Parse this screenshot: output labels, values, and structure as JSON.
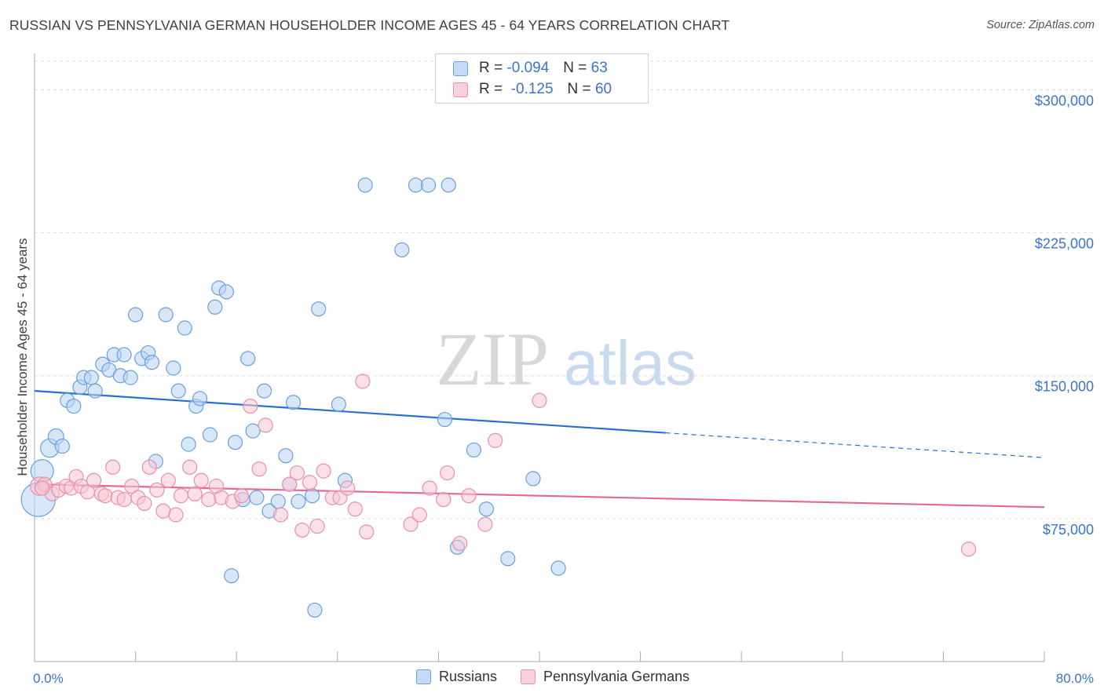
{
  "title": "RUSSIAN VS PENNSYLVANIA GERMAN HOUSEHOLDER INCOME AGES 45 - 64 YEARS CORRELATION CHART",
  "source": "Source: ZipAtlas.com",
  "watermark": {
    "zip": "ZIP",
    "atlas": "atlas"
  },
  "legend": {
    "rows": [
      {
        "r_label": "R =",
        "r_value": "-0.094",
        "n_label": "N =",
        "n_value": "63",
        "color": "#a8c8f0",
        "border": "#6a9fe0"
      },
      {
        "r_label": "R =",
        "r_value": "-0.125",
        "n_label": "N =",
        "n_value": "60",
        "color": "#f8c0d0",
        "border": "#e890ac"
      }
    ]
  },
  "bottom_legend": [
    {
      "label": "Russians",
      "color": "#c4daf6",
      "border": "#6a9fe0"
    },
    {
      "label": "Pennsylvania Germans",
      "color": "#f9d0dc",
      "border": "#e890ac"
    }
  ],
  "chart_data": {
    "type": "scatter",
    "title": "RUSSIAN VS PENNSYLVANIA GERMAN HOUSEHOLDER INCOME AGES 45 - 64 YEARS CORRELATION CHART",
    "xlabel": "",
    "ylabel": "Householder Income Ages 45 - 64 years",
    "xlim": [
      0,
      80
    ],
    "ylim": [
      0,
      315000
    ],
    "x_tick_labels": [
      "0.0%",
      "80.0%"
    ],
    "y_ticks": [
      75000,
      150000,
      225000,
      300000
    ],
    "y_tick_labels": [
      "$75,000",
      "$150,000",
      "$225,000",
      "$300,000"
    ],
    "series": [
      {
        "name": "Russians",
        "color": "#6a9fe0",
        "fill": "#b8d3f3",
        "trend": {
          "x_start": 0,
          "y_start": 142000,
          "x_solid_end": 50,
          "y_solid_end": 120000,
          "x_end": 80,
          "y_end": 107000,
          "color": "#2a6fcf"
        },
        "points": [
          {
            "x": 0.3,
            "y": 85000,
            "s": 2.4
          },
          {
            "x": 0.6,
            "y": 100000,
            "s": 1.6
          },
          {
            "x": 1.2,
            "y": 112000,
            "s": 1.3
          },
          {
            "x": 1.7,
            "y": 118000,
            "s": 1.1
          },
          {
            "x": 2.2,
            "y": 113000,
            "s": 1
          },
          {
            "x": 2.6,
            "y": 137000,
            "s": 1
          },
          {
            "x": 3.1,
            "y": 134000,
            "s": 1
          },
          {
            "x": 3.6,
            "y": 144000,
            "s": 1
          },
          {
            "x": 3.9,
            "y": 149000,
            "s": 1
          },
          {
            "x": 4.5,
            "y": 149000,
            "s": 1
          },
          {
            "x": 4.8,
            "y": 142000,
            "s": 1
          },
          {
            "x": 5.4,
            "y": 156000,
            "s": 1
          },
          {
            "x": 5.9,
            "y": 153000,
            "s": 1
          },
          {
            "x": 6.3,
            "y": 161000,
            "s": 1
          },
          {
            "x": 6.8,
            "y": 150000,
            "s": 1
          },
          {
            "x": 7.1,
            "y": 161000,
            "s": 1
          },
          {
            "x": 7.6,
            "y": 149000,
            "s": 1
          },
          {
            "x": 8.0,
            "y": 182000,
            "s": 1
          },
          {
            "x": 8.5,
            "y": 159000,
            "s": 1
          },
          {
            "x": 9.0,
            "y": 162000,
            "s": 1
          },
          {
            "x": 9.3,
            "y": 157000,
            "s": 1
          },
          {
            "x": 9.6,
            "y": 105000,
            "s": 1
          },
          {
            "x": 10.4,
            "y": 182000,
            "s": 1
          },
          {
            "x": 11.0,
            "y": 154000,
            "s": 1
          },
          {
            "x": 11.4,
            "y": 142000,
            "s": 1
          },
          {
            "x": 11.9,
            "y": 175000,
            "s": 1
          },
          {
            "x": 12.2,
            "y": 114000,
            "s": 1
          },
          {
            "x": 12.8,
            "y": 134000,
            "s": 1
          },
          {
            "x": 13.1,
            "y": 138000,
            "s": 1
          },
          {
            "x": 13.9,
            "y": 119000,
            "s": 1
          },
          {
            "x": 14.3,
            "y": 186000,
            "s": 1
          },
          {
            "x": 14.6,
            "y": 196000,
            "s": 1
          },
          {
            "x": 15.2,
            "y": 194000,
            "s": 1
          },
          {
            "x": 15.6,
            "y": 45000,
            "s": 1
          },
          {
            "x": 15.9,
            "y": 115000,
            "s": 1
          },
          {
            "x": 16.5,
            "y": 85000,
            "s": 1
          },
          {
            "x": 16.9,
            "y": 159000,
            "s": 1
          },
          {
            "x": 17.3,
            "y": 121000,
            "s": 1
          },
          {
            "x": 17.6,
            "y": 86000,
            "s": 1
          },
          {
            "x": 18.2,
            "y": 142000,
            "s": 1
          },
          {
            "x": 18.6,
            "y": 79000,
            "s": 1
          },
          {
            "x": 19.3,
            "y": 84000,
            "s": 1
          },
          {
            "x": 19.9,
            "y": 108000,
            "s": 1
          },
          {
            "x": 20.2,
            "y": 93000,
            "s": 1
          },
          {
            "x": 20.5,
            "y": 136000,
            "s": 1
          },
          {
            "x": 20.9,
            "y": 84000,
            "s": 1
          },
          {
            "x": 22.0,
            "y": 87000,
            "s": 1
          },
          {
            "x": 22.5,
            "y": 185000,
            "s": 1
          },
          {
            "x": 22.2,
            "y": 27000,
            "s": 1
          },
          {
            "x": 24.1,
            "y": 135000,
            "s": 1
          },
          {
            "x": 24.6,
            "y": 95000,
            "s": 1
          },
          {
            "x": 26.2,
            "y": 250000,
            "s": 1
          },
          {
            "x": 29.1,
            "y": 216000,
            "s": 1
          },
          {
            "x": 30.2,
            "y": 250000,
            "s": 1
          },
          {
            "x": 31.2,
            "y": 250000,
            "s": 1
          },
          {
            "x": 32.5,
            "y": 127000,
            "s": 1
          },
          {
            "x": 32.8,
            "y": 250000,
            "s": 1
          },
          {
            "x": 33.5,
            "y": 60000,
            "s": 1
          },
          {
            "x": 34.8,
            "y": 111000,
            "s": 1
          },
          {
            "x": 35.8,
            "y": 80000,
            "s": 1
          },
          {
            "x": 37.5,
            "y": 54000,
            "s": 1
          },
          {
            "x": 39.5,
            "y": 96000,
            "s": 1
          },
          {
            "x": 41.5,
            "y": 49000,
            "s": 1
          }
        ]
      },
      {
        "name": "Pennsylvania Germans",
        "color": "#e890ac",
        "fill": "#f8c6d4",
        "trend": {
          "x_start": 0,
          "y_start": 93000,
          "x_end": 80,
          "y_end": 81000,
          "color": "#e3689a"
        },
        "points": [
          {
            "x": 0.4,
            "y": 92000,
            "s": 1.3
          },
          {
            "x": 0.8,
            "y": 93000,
            "s": 1
          },
          {
            "x": 1.4,
            "y": 88000,
            "s": 1
          },
          {
            "x": 1.9,
            "y": 90000,
            "s": 1
          },
          {
            "x": 2.5,
            "y": 92000,
            "s": 1
          },
          {
            "x": 2.9,
            "y": 91000,
            "s": 1
          },
          {
            "x": 3.3,
            "y": 97000,
            "s": 1
          },
          {
            "x": 3.7,
            "y": 92000,
            "s": 1
          },
          {
            "x": 4.2,
            "y": 89000,
            "s": 1
          },
          {
            "x": 4.7,
            "y": 95000,
            "s": 1
          },
          {
            "x": 5.3,
            "y": 88000,
            "s": 1
          },
          {
            "x": 5.6,
            "y": 87000,
            "s": 1
          },
          {
            "x": 6.2,
            "y": 102000,
            "s": 1
          },
          {
            "x": 6.6,
            "y": 86000,
            "s": 1
          },
          {
            "x": 7.1,
            "y": 85000,
            "s": 1
          },
          {
            "x": 7.7,
            "y": 92000,
            "s": 1
          },
          {
            "x": 8.2,
            "y": 86000,
            "s": 1
          },
          {
            "x": 8.7,
            "y": 83000,
            "s": 1
          },
          {
            "x": 9.1,
            "y": 102000,
            "s": 1
          },
          {
            "x": 9.7,
            "y": 90000,
            "s": 1
          },
          {
            "x": 10.2,
            "y": 79000,
            "s": 1
          },
          {
            "x": 10.6,
            "y": 95000,
            "s": 1
          },
          {
            "x": 11.2,
            "y": 77000,
            "s": 1
          },
          {
            "x": 11.6,
            "y": 87000,
            "s": 1
          },
          {
            "x": 12.3,
            "y": 102000,
            "s": 1
          },
          {
            "x": 12.7,
            "y": 88000,
            "s": 1
          },
          {
            "x": 13.2,
            "y": 95000,
            "s": 1
          },
          {
            "x": 13.8,
            "y": 85000,
            "s": 1
          },
          {
            "x": 14.4,
            "y": 92000,
            "s": 1
          },
          {
            "x": 14.8,
            "y": 86000,
            "s": 1
          },
          {
            "x": 15.7,
            "y": 84000,
            "s": 1
          },
          {
            "x": 16.4,
            "y": 87000,
            "s": 1
          },
          {
            "x": 17.1,
            "y": 134000,
            "s": 1
          },
          {
            "x": 17.8,
            "y": 101000,
            "s": 1
          },
          {
            "x": 18.3,
            "y": 124000,
            "s": 1
          },
          {
            "x": 19.5,
            "y": 77000,
            "s": 1
          },
          {
            "x": 20.2,
            "y": 93000,
            "s": 1
          },
          {
            "x": 20.8,
            "y": 99000,
            "s": 1
          },
          {
            "x": 21.2,
            "y": 69000,
            "s": 1
          },
          {
            "x": 21.8,
            "y": 94000,
            "s": 1
          },
          {
            "x": 22.4,
            "y": 71000,
            "s": 1
          },
          {
            "x": 22.9,
            "y": 100000,
            "s": 1
          },
          {
            "x": 23.6,
            "y": 86000,
            "s": 1
          },
          {
            "x": 24.2,
            "y": 86000,
            "s": 1
          },
          {
            "x": 24.8,
            "y": 91000,
            "s": 1
          },
          {
            "x": 25.4,
            "y": 80000,
            "s": 1
          },
          {
            "x": 26.0,
            "y": 147000,
            "s": 1
          },
          {
            "x": 26.3,
            "y": 68000,
            "s": 1
          },
          {
            "x": 29.8,
            "y": 72000,
            "s": 1
          },
          {
            "x": 30.5,
            "y": 77000,
            "s": 1
          },
          {
            "x": 31.3,
            "y": 91000,
            "s": 1
          },
          {
            "x": 32.4,
            "y": 85000,
            "s": 1
          },
          {
            "x": 32.7,
            "y": 99000,
            "s": 1
          },
          {
            "x": 33.7,
            "y": 62000,
            "s": 1
          },
          {
            "x": 34.4,
            "y": 87000,
            "s": 1
          },
          {
            "x": 35.7,
            "y": 72000,
            "s": 1
          },
          {
            "x": 36.5,
            "y": 116000,
            "s": 1
          },
          {
            "x": 40.0,
            "y": 137000,
            "s": 1
          },
          {
            "x": 74.0,
            "y": 59000,
            "s": 1
          },
          {
            "x": 0.6,
            "y": 91000,
            "s": 1
          }
        ]
      }
    ]
  }
}
